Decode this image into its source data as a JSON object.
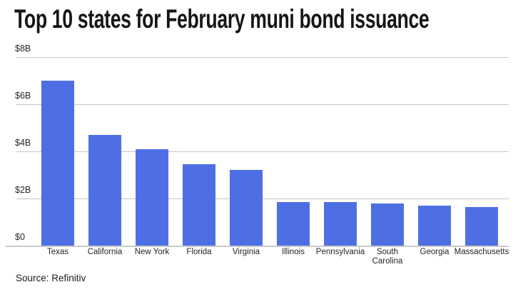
{
  "header": {
    "title": "Top 10 states for February muni bond issuance"
  },
  "footer": {
    "source": "Source: Refinitiv"
  },
  "chart_data": {
    "type": "bar",
    "title": "Top 10 states for February muni bond issuance",
    "categories": [
      "Texas",
      "California",
      "New York",
      "Florida",
      "Virginia",
      "Illinois",
      "Pennsylvania",
      "South Carolina",
      "Georgia",
      "Massachusetts"
    ],
    "category_label_lines": [
      [
        "Texas"
      ],
      [
        "California"
      ],
      [
        "New York"
      ],
      [
        "Florida"
      ],
      [
        "Virginia"
      ],
      [
        "Illinois"
      ],
      [
        "Pennsylvania"
      ],
      [
        "South",
        "Carolina"
      ],
      [
        "Georgia"
      ],
      [
        "Massachusetts"
      ]
    ],
    "values": [
      7.0,
      4.7,
      4.1,
      3.45,
      3.2,
      1.85,
      1.85,
      1.8,
      1.7,
      1.65
    ],
    "unit": "$B",
    "xlabel": "",
    "ylabel": "",
    "y_ticks": [
      {
        "label": "$8B",
        "value": 8
      },
      {
        "label": "$6B",
        "value": 6
      },
      {
        "label": "$4B",
        "value": 4
      },
      {
        "label": "$2B",
        "value": 2
      },
      {
        "label": "$0",
        "value": 0
      }
    ],
    "ylim": [
      0,
      8
    ],
    "grid": true,
    "legend": "none",
    "colors": {
      "bar": "#4e6fe4",
      "grid": "#c6c6c6",
      "axis": "#c9c9c9",
      "title_text": "#161616",
      "tick_text": "#262626",
      "source_text": "#1b1b1b"
    },
    "source": "Source: Refinitiv"
  }
}
